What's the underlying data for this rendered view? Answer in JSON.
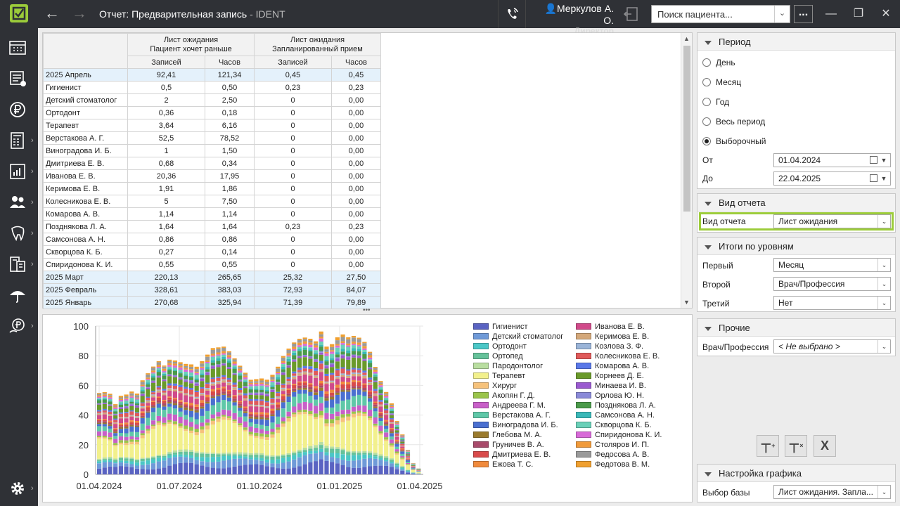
{
  "header": {
    "title": "Отчет: Предварительная запись",
    "app": " - IDENT",
    "user_name": "Меркулов А. О.",
    "user_role": "Директор",
    "search_placeholder": "Поиск пациента...",
    "more_label": "..."
  },
  "table": {
    "group_headers": [
      "Лист ожидания\nПациент хочет раньше",
      "Лист ожидания\nЗапланированный прием"
    ],
    "sub_headers": [
      "Записей",
      "Часов",
      "Записей",
      "Часов"
    ],
    "rows": [
      {
        "label": "2025 Апрель",
        "v": [
          "92,41",
          "121,34",
          "0,45",
          "0,45"
        ],
        "group": true
      },
      {
        "label": "Гигиенист",
        "v": [
          "0,5",
          "0,50",
          "0,23",
          "0,23"
        ]
      },
      {
        "label": "Детский стоматолог",
        "v": [
          "2",
          "2,50",
          "0",
          "0,00"
        ]
      },
      {
        "label": "Ортодонт",
        "v": [
          "0,36",
          "0,18",
          "0",
          "0,00"
        ]
      },
      {
        "label": "Терапевт",
        "v": [
          "3,64",
          "6,16",
          "0",
          "0,00"
        ]
      },
      {
        "label": "Верстакова А. Г.",
        "v": [
          "52,5",
          "78,52",
          "0",
          "0,00"
        ]
      },
      {
        "label": "Виноградова И. Б.",
        "v": [
          "1",
          "1,50",
          "0",
          "0,00"
        ]
      },
      {
        "label": "Дмитриева Е. В.",
        "v": [
          "0,68",
          "0,34",
          "0",
          "0,00"
        ]
      },
      {
        "label": "Иванова Е. В.",
        "v": [
          "20,36",
          "17,95",
          "0",
          "0,00"
        ]
      },
      {
        "label": "Керимова Е. В.",
        "v": [
          "1,91",
          "1,86",
          "0",
          "0,00"
        ]
      },
      {
        "label": "Колесникова Е. В.",
        "v": [
          "5",
          "7,50",
          "0",
          "0,00"
        ]
      },
      {
        "label": "Комарова А. В.",
        "v": [
          "1,14",
          "1,14",
          "0",
          "0,00"
        ]
      },
      {
        "label": "Позднякова Л. А.",
        "v": [
          "1,64",
          "1,64",
          "0,23",
          "0,23"
        ]
      },
      {
        "label": "Самсонова А. Н.",
        "v": [
          "0,86",
          "0,86",
          "0",
          "0,00"
        ]
      },
      {
        "label": "Скворцова К. Б.",
        "v": [
          "0,27",
          "0,14",
          "0",
          "0,00"
        ]
      },
      {
        "label": "Спиридонова К. И.",
        "v": [
          "0,55",
          "0,55",
          "0",
          "0,00"
        ]
      },
      {
        "label": "2025 Март",
        "v": [
          "220,13",
          "265,65",
          "25,32",
          "27,50"
        ],
        "group": true
      },
      {
        "label": "2025 Февраль",
        "v": [
          "328,61",
          "383,03",
          "72,93",
          "84,07"
        ],
        "group": true
      },
      {
        "label": "2025 Январь",
        "v": [
          "270,68",
          "325,94",
          "71,39",
          "79,89"
        ],
        "group": true
      }
    ]
  },
  "chart_data": {
    "type": "bar",
    "stacked": true,
    "y_ticks": [
      "100",
      "80",
      "60",
      "40",
      "20",
      "0"
    ],
    "ylim": [
      0,
      100
    ],
    "x_ticks": [
      "01.04.2024",
      "01.07.2024",
      "01.10.2024",
      "01.01.2025",
      "01.04.2025"
    ],
    "totals": [
      52,
      54,
      55,
      50,
      58,
      60,
      62,
      59,
      66,
      68,
      70,
      72,
      69,
      74,
      76,
      78,
      80,
      82,
      81,
      84,
      86,
      87,
      84,
      82,
      78,
      74,
      71,
      69,
      67,
      70,
      72,
      71,
      73,
      76,
      80,
      82,
      84,
      86,
      88,
      90,
      92,
      103,
      95,
      98,
      102,
      101,
      95,
      92,
      88,
      84,
      78,
      70,
      63,
      58,
      52,
      40,
      30,
      18,
      8,
      4
    ],
    "series": [
      {
        "name": "Гигиенист",
        "color": "#5a63c2"
      },
      {
        "name": "Детский стоматолог",
        "color": "#6f9ad8"
      },
      {
        "name": "Ортодонт",
        "color": "#4bc7c7"
      },
      {
        "name": "Ортопед",
        "color": "#66c29a"
      },
      {
        "name": "Пародонтолог",
        "color": "#b9dea0"
      },
      {
        "name": "Терапевт",
        "color": "#f2f08c"
      },
      {
        "name": "Хирург",
        "color": "#f6c27b"
      },
      {
        "name": "Акопян Г. Д.",
        "color": "#9ac44a"
      },
      {
        "name": "Андреева Г. М.",
        "color": "#c85fc8"
      },
      {
        "name": "Верстакова А. Г.",
        "color": "#5fc8a8"
      },
      {
        "name": "Виноградова И. Б.",
        "color": "#4a6fd0"
      },
      {
        "name": "Глебова М. А.",
        "color": "#9a7a2c"
      },
      {
        "name": "Груничев В. А.",
        "color": "#a84a6a"
      },
      {
        "name": "Дмитриева Е. В.",
        "color": "#d84a4a"
      },
      {
        "name": "Ежова Т. С.",
        "color": "#f08a3c"
      },
      {
        "name": "Иванова Е. В.",
        "color": "#d04a8a"
      },
      {
        "name": "Керимова Е. В.",
        "color": "#d4a87a"
      },
      {
        "name": "Козлова З. Ф.",
        "color": "#9ab4d8"
      },
      {
        "name": "Колесникова Е. В.",
        "color": "#e05a5a"
      },
      {
        "name": "Комарова А. В.",
        "color": "#5a78e8"
      },
      {
        "name": "Корнеев Д. Е.",
        "color": "#6a9a2a"
      },
      {
        "name": "Минаева И. В.",
        "color": "#9a5ad0"
      },
      {
        "name": "Орлова Ю. Н.",
        "color": "#8a8ad8"
      },
      {
        "name": "Позднякова Л. А.",
        "color": "#4a9a4a"
      },
      {
        "name": "Самсонова А. Н.",
        "color": "#3ab8b8"
      },
      {
        "name": "Скворцова К. Б.",
        "color": "#6ad0b8"
      },
      {
        "name": "Спиридонова К. И.",
        "color": "#d86ad8"
      },
      {
        "name": "Столяров И. П.",
        "color": "#f09a3a"
      },
      {
        "name": "Федосова А. В.",
        "color": "#9a9a9a"
      },
      {
        "name": "Федотова В. М.",
        "color": "#f0a030"
      }
    ]
  },
  "right": {
    "period_title": "Период",
    "period_options": [
      "День",
      "Месяц",
      "Год",
      "Весь период",
      "Выборочный"
    ],
    "from_label": "От",
    "from_value": "01.04.2024",
    "to_label": "До",
    "to_value": "22.04.2025",
    "view_title": "Вид отчета",
    "view_label": "Вид отчета",
    "view_value": "Лист ожидания",
    "levels_title": "Итоги по уровням",
    "first_label": "Первый",
    "first_value": "Месяц",
    "second_label": "Второй",
    "second_value": "Врач/Профессия",
    "third_label": "Третий",
    "third_value": "Нет",
    "other_title": "Прочие",
    "doc_label": "Врач/Профессия",
    "doc_value": "< Не выбрано >",
    "chart_settings_title": "Настройка графика",
    "base_label": "Выбор базы",
    "base_value": "Лист ожидания. Запла..."
  }
}
